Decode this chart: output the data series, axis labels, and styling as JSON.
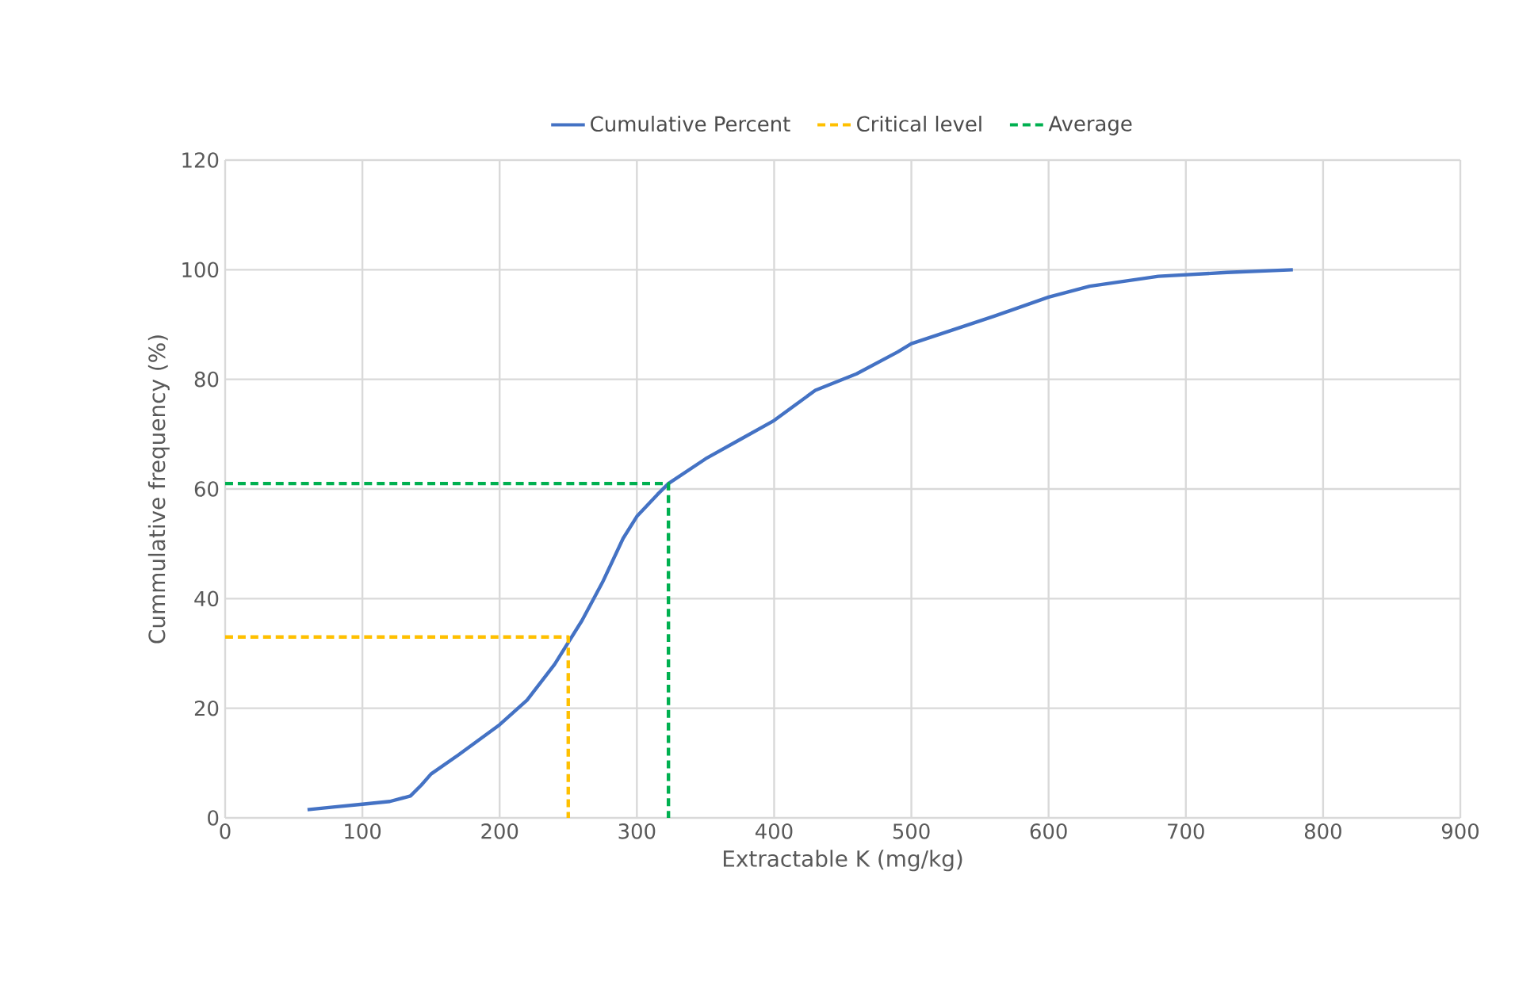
{
  "chart_data": {
    "type": "line",
    "xlabel": "Extractable K (mg/kg)",
    "ylabel": "Cummulative frequency (%)",
    "xlim": [
      0,
      900
    ],
    "xticks": [
      0,
      100,
      200,
      300,
      400,
      500,
      600,
      700,
      800,
      900
    ],
    "ylim": [
      0,
      120
    ],
    "yticks": [
      0,
      20,
      40,
      60,
      80,
      100,
      120
    ],
    "grid": true,
    "legend": "top",
    "marker": "none",
    "series": [
      {
        "name": "Cumulative Percent",
        "color": "#4472c4",
        "line_style": "solid",
        "x": [
          60,
          80,
          100,
          120,
          135,
          143,
          150,
          170,
          200,
          220,
          240,
          250,
          260,
          275,
          290,
          300,
          315,
          323,
          350,
          375,
          400,
          430,
          460,
          490,
          500,
          530,
          560,
          600,
          630,
          680,
          730,
          778
        ],
        "values": [
          1.5,
          2,
          2.5,
          3,
          4,
          6,
          8,
          11.5,
          17,
          21.5,
          28,
          32,
          36,
          43,
          51,
          55,
          59,
          61,
          65.5,
          69,
          72.5,
          78,
          81,
          85,
          86.5,
          89,
          91.5,
          95,
          97,
          98.8,
          99.5,
          100
        ]
      },
      {
        "name": "Critical level",
        "color": "#ffc000",
        "line_style": "dashed",
        "x": [
          0,
          250,
          250
        ],
        "values": [
          33,
          33,
          0
        ]
      },
      {
        "name": "Average",
        "color": "#00b050",
        "line_style": "dashed",
        "x": [
          0,
          323,
          323
        ],
        "values": [
          61,
          61,
          0
        ]
      }
    ]
  }
}
